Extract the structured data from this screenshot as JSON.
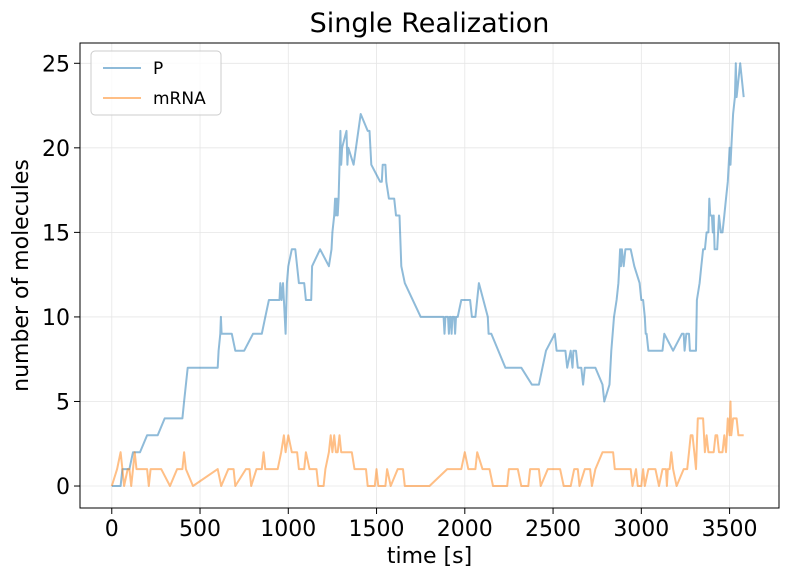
{
  "chart_data": {
    "type": "line",
    "title": "Single Realization",
    "xlabel": "time [s]",
    "ylabel": "number of molecules",
    "xlim": [
      -180,
      3780
    ],
    "ylim": [
      -1.3,
      26.2
    ],
    "xticks": [
      0,
      500,
      1000,
      1500,
      2000,
      2500,
      3000,
      3500
    ],
    "yticks": [
      0,
      5,
      10,
      15,
      20,
      25
    ],
    "grid": true,
    "legend_position": "top-left",
    "series": [
      {
        "name": "P",
        "color": "#1f77b4",
        "points": [
          [
            0,
            0
          ],
          [
            50,
            0
          ],
          [
            60,
            1
          ],
          [
            100,
            1
          ],
          [
            120,
            2
          ],
          [
            160,
            2
          ],
          [
            200,
            3
          ],
          [
            260,
            3
          ],
          [
            300,
            4
          ],
          [
            400,
            4
          ],
          [
            410,
            5
          ],
          [
            420,
            6
          ],
          [
            430,
            7
          ],
          [
            600,
            7
          ],
          [
            605,
            8
          ],
          [
            615,
            9
          ],
          [
            618,
            10
          ],
          [
            622,
            9
          ],
          [
            680,
            9
          ],
          [
            700,
            8
          ],
          [
            750,
            8
          ],
          [
            800,
            9
          ],
          [
            850,
            9
          ],
          [
            870,
            10
          ],
          [
            890,
            11
          ],
          [
            950,
            11
          ],
          [
            955,
            12
          ],
          [
            962,
            11
          ],
          [
            970,
            12
          ],
          [
            975,
            11
          ],
          [
            985,
            9
          ],
          [
            992,
            12
          ],
          [
            1000,
            13
          ],
          [
            1020,
            14
          ],
          [
            1040,
            14
          ],
          [
            1050,
            13
          ],
          [
            1060,
            12
          ],
          [
            1090,
            12
          ],
          [
            1100,
            11
          ],
          [
            1130,
            11
          ],
          [
            1135,
            13
          ],
          [
            1180,
            14
          ],
          [
            1230,
            13
          ],
          [
            1245,
            14
          ],
          [
            1250,
            15
          ],
          [
            1260,
            16
          ],
          [
            1265,
            17
          ],
          [
            1270,
            16
          ],
          [
            1275,
            17
          ],
          [
            1280,
            16
          ],
          [
            1285,
            17
          ],
          [
            1295,
            21
          ],
          [
            1300,
            19
          ],
          [
            1305,
            20
          ],
          [
            1330,
            21
          ],
          [
            1335,
            19
          ],
          [
            1340,
            20
          ],
          [
            1370,
            19
          ],
          [
            1410,
            22
          ],
          [
            1450,
            21
          ],
          [
            1460,
            21
          ],
          [
            1470,
            19
          ],
          [
            1520,
            18
          ],
          [
            1530,
            18
          ],
          [
            1535,
            19
          ],
          [
            1550,
            19
          ],
          [
            1555,
            18
          ],
          [
            1570,
            17
          ],
          [
            1600,
            17
          ],
          [
            1610,
            16
          ],
          [
            1630,
            16
          ],
          [
            1640,
            13
          ],
          [
            1660,
            12
          ],
          [
            1750,
            10
          ],
          [
            1880,
            10
          ],
          [
            1885,
            9
          ],
          [
            1890,
            10
          ],
          [
            1905,
            10
          ],
          [
            1910,
            9
          ],
          [
            1915,
            10
          ],
          [
            1920,
            10
          ],
          [
            1925,
            9
          ],
          [
            1930,
            10
          ],
          [
            1940,
            10
          ],
          [
            1945,
            9
          ],
          [
            1950,
            10
          ],
          [
            1960,
            10
          ],
          [
            1980,
            11
          ],
          [
            2030,
            11
          ],
          [
            2040,
            10
          ],
          [
            2060,
            10
          ],
          [
            2080,
            12
          ],
          [
            2130,
            10
          ],
          [
            2135,
            9
          ],
          [
            2150,
            9
          ],
          [
            2230,
            7
          ],
          [
            2320,
            7
          ],
          [
            2380,
            6
          ],
          [
            2420,
            6
          ],
          [
            2460,
            8
          ],
          [
            2510,
            9
          ],
          [
            2520,
            8
          ],
          [
            2570,
            8
          ],
          [
            2580,
            7
          ],
          [
            2600,
            8
          ],
          [
            2610,
            7
          ],
          [
            2615,
            8
          ],
          [
            2630,
            8
          ],
          [
            2640,
            7
          ],
          [
            2660,
            7
          ],
          [
            2670,
            6
          ],
          [
            2680,
            7
          ],
          [
            2740,
            7
          ],
          [
            2780,
            6
          ],
          [
            2790,
            5
          ],
          [
            2820,
            6
          ],
          [
            2830,
            8
          ],
          [
            2845,
            10
          ],
          [
            2860,
            11
          ],
          [
            2870,
            12
          ],
          [
            2875,
            13
          ],
          [
            2880,
            14
          ],
          [
            2885,
            13
          ],
          [
            2890,
            14
          ],
          [
            2900,
            13
          ],
          [
            2910,
            14
          ],
          [
            2940,
            14
          ],
          [
            2960,
            13
          ],
          [
            2990,
            12
          ],
          [
            3000,
            11
          ],
          [
            3010,
            11
          ],
          [
            3020,
            10
          ],
          [
            3025,
            9
          ],
          [
            3030,
            9
          ],
          [
            3040,
            8
          ],
          [
            3120,
            8
          ],
          [
            3130,
            9
          ],
          [
            3180,
            8
          ],
          [
            3230,
            9
          ],
          [
            3240,
            9
          ],
          [
            3245,
            8
          ],
          [
            3255,
            9
          ],
          [
            3270,
            9
          ],
          [
            3275,
            8
          ],
          [
            3310,
            8
          ],
          [
            3315,
            11
          ],
          [
            3330,
            12
          ],
          [
            3340,
            13
          ],
          [
            3350,
            14
          ],
          [
            3360,
            14
          ],
          [
            3370,
            15
          ],
          [
            3380,
            15
          ],
          [
            3385,
            17
          ],
          [
            3390,
            16
          ],
          [
            3400,
            16
          ],
          [
            3405,
            15
          ],
          [
            3410,
            16
          ],
          [
            3415,
            14
          ],
          [
            3430,
            14
          ],
          [
            3440,
            16
          ],
          [
            3450,
            15
          ],
          [
            3460,
            15
          ],
          [
            3470,
            16
          ],
          [
            3480,
            17
          ],
          [
            3490,
            18
          ],
          [
            3500,
            20
          ],
          [
            3505,
            19
          ],
          [
            3510,
            20
          ],
          [
            3520,
            22
          ],
          [
            3530,
            23
          ],
          [
            3535,
            25
          ],
          [
            3540,
            23
          ],
          [
            3550,
            24
          ],
          [
            3560,
            25
          ],
          [
            3580,
            23
          ]
        ]
      },
      {
        "name": "mRNA",
        "color": "#ff7f0e",
        "points": [
          [
            0,
            0
          ],
          [
            30,
            1
          ],
          [
            50,
            2
          ],
          [
            60,
            1
          ],
          [
            70,
            0
          ],
          [
            90,
            1
          ],
          [
            100,
            1
          ],
          [
            110,
            0
          ],
          [
            120,
            1
          ],
          [
            130,
            2
          ],
          [
            140,
            1
          ],
          [
            200,
            1
          ],
          [
            210,
            0
          ],
          [
            220,
            1
          ],
          [
            250,
            1
          ],
          [
            280,
            1
          ],
          [
            330,
            0
          ],
          [
            370,
            1
          ],
          [
            400,
            1
          ],
          [
            410,
            2
          ],
          [
            420,
            1
          ],
          [
            460,
            0
          ],
          [
            600,
            1
          ],
          [
            620,
            0
          ],
          [
            660,
            1
          ],
          [
            690,
            1
          ],
          [
            700,
            0
          ],
          [
            760,
            1
          ],
          [
            780,
            1
          ],
          [
            790,
            0
          ],
          [
            820,
            1
          ],
          [
            850,
            1
          ],
          [
            860,
            2
          ],
          [
            870,
            1
          ],
          [
            940,
            1
          ],
          [
            960,
            2
          ],
          [
            975,
            3
          ],
          [
            985,
            2
          ],
          [
            1000,
            3
          ],
          [
            1020,
            2
          ],
          [
            1050,
            2
          ],
          [
            1060,
            1
          ],
          [
            1090,
            1
          ],
          [
            1100,
            2
          ],
          [
            1120,
            1
          ],
          [
            1140,
            1
          ],
          [
            1160,
            1
          ],
          [
            1170,
            0
          ],
          [
            1200,
            0
          ],
          [
            1210,
            1
          ],
          [
            1230,
            2
          ],
          [
            1240,
            3
          ],
          [
            1250,
            2
          ],
          [
            1260,
            3
          ],
          [
            1270,
            2
          ],
          [
            1280,
            2
          ],
          [
            1290,
            3
          ],
          [
            1300,
            2
          ],
          [
            1310,
            2
          ],
          [
            1360,
            2
          ],
          [
            1375,
            1
          ],
          [
            1440,
            1
          ],
          [
            1450,
            0
          ],
          [
            1490,
            0
          ],
          [
            1500,
            1
          ],
          [
            1510,
            0
          ],
          [
            1550,
            0
          ],
          [
            1560,
            1
          ],
          [
            1580,
            0
          ],
          [
            1620,
            1
          ],
          [
            1650,
            1
          ],
          [
            1660,
            0
          ],
          [
            1800,
            0
          ],
          [
            1900,
            1
          ],
          [
            1980,
            1
          ],
          [
            2000,
            2
          ],
          [
            2020,
            1
          ],
          [
            2060,
            1
          ],
          [
            2070,
            2
          ],
          [
            2100,
            1
          ],
          [
            2140,
            1
          ],
          [
            2160,
            0
          ],
          [
            2240,
            0
          ],
          [
            2250,
            1
          ],
          [
            2300,
            1
          ],
          [
            2320,
            0
          ],
          [
            2360,
            0
          ],
          [
            2370,
            1
          ],
          [
            2420,
            1
          ],
          [
            2430,
            0
          ],
          [
            2470,
            1
          ],
          [
            2540,
            1
          ],
          [
            2560,
            0
          ],
          [
            2600,
            0
          ],
          [
            2620,
            1
          ],
          [
            2640,
            1
          ],
          [
            2650,
            0
          ],
          [
            2680,
            1
          ],
          [
            2710,
            1
          ],
          [
            2720,
            0
          ],
          [
            2740,
            1
          ],
          [
            2780,
            2
          ],
          [
            2840,
            2
          ],
          [
            2850,
            1
          ],
          [
            2940,
            1
          ],
          [
            2950,
            0
          ],
          [
            2970,
            1
          ],
          [
            2980,
            0
          ],
          [
            3000,
            0
          ],
          [
            3010,
            1
          ],
          [
            3020,
            0
          ],
          [
            3040,
            1
          ],
          [
            3080,
            1
          ],
          [
            3100,
            0
          ],
          [
            3120,
            1
          ],
          [
            3140,
            1
          ],
          [
            3145,
            0
          ],
          [
            3150,
            1
          ],
          [
            3160,
            1
          ],
          [
            3170,
            2
          ],
          [
            3180,
            1
          ],
          [
            3200,
            0
          ],
          [
            3240,
            1
          ],
          [
            3260,
            1
          ],
          [
            3270,
            2
          ],
          [
            3280,
            3
          ],
          [
            3290,
            3
          ],
          [
            3300,
            2
          ],
          [
            3310,
            1
          ],
          [
            3320,
            4
          ],
          [
            3350,
            4
          ],
          [
            3360,
            2
          ],
          [
            3370,
            3
          ],
          [
            3380,
            2
          ],
          [
            3410,
            2
          ],
          [
            3420,
            3
          ],
          [
            3430,
            3
          ],
          [
            3440,
            2
          ],
          [
            3460,
            2
          ],
          [
            3470,
            3
          ],
          [
            3480,
            2
          ],
          [
            3490,
            4
          ],
          [
            3500,
            3
          ],
          [
            3505,
            5
          ],
          [
            3510,
            3
          ],
          [
            3520,
            4
          ],
          [
            3540,
            4
          ],
          [
            3550,
            3
          ],
          [
            3580,
            3
          ]
        ]
      }
    ]
  }
}
